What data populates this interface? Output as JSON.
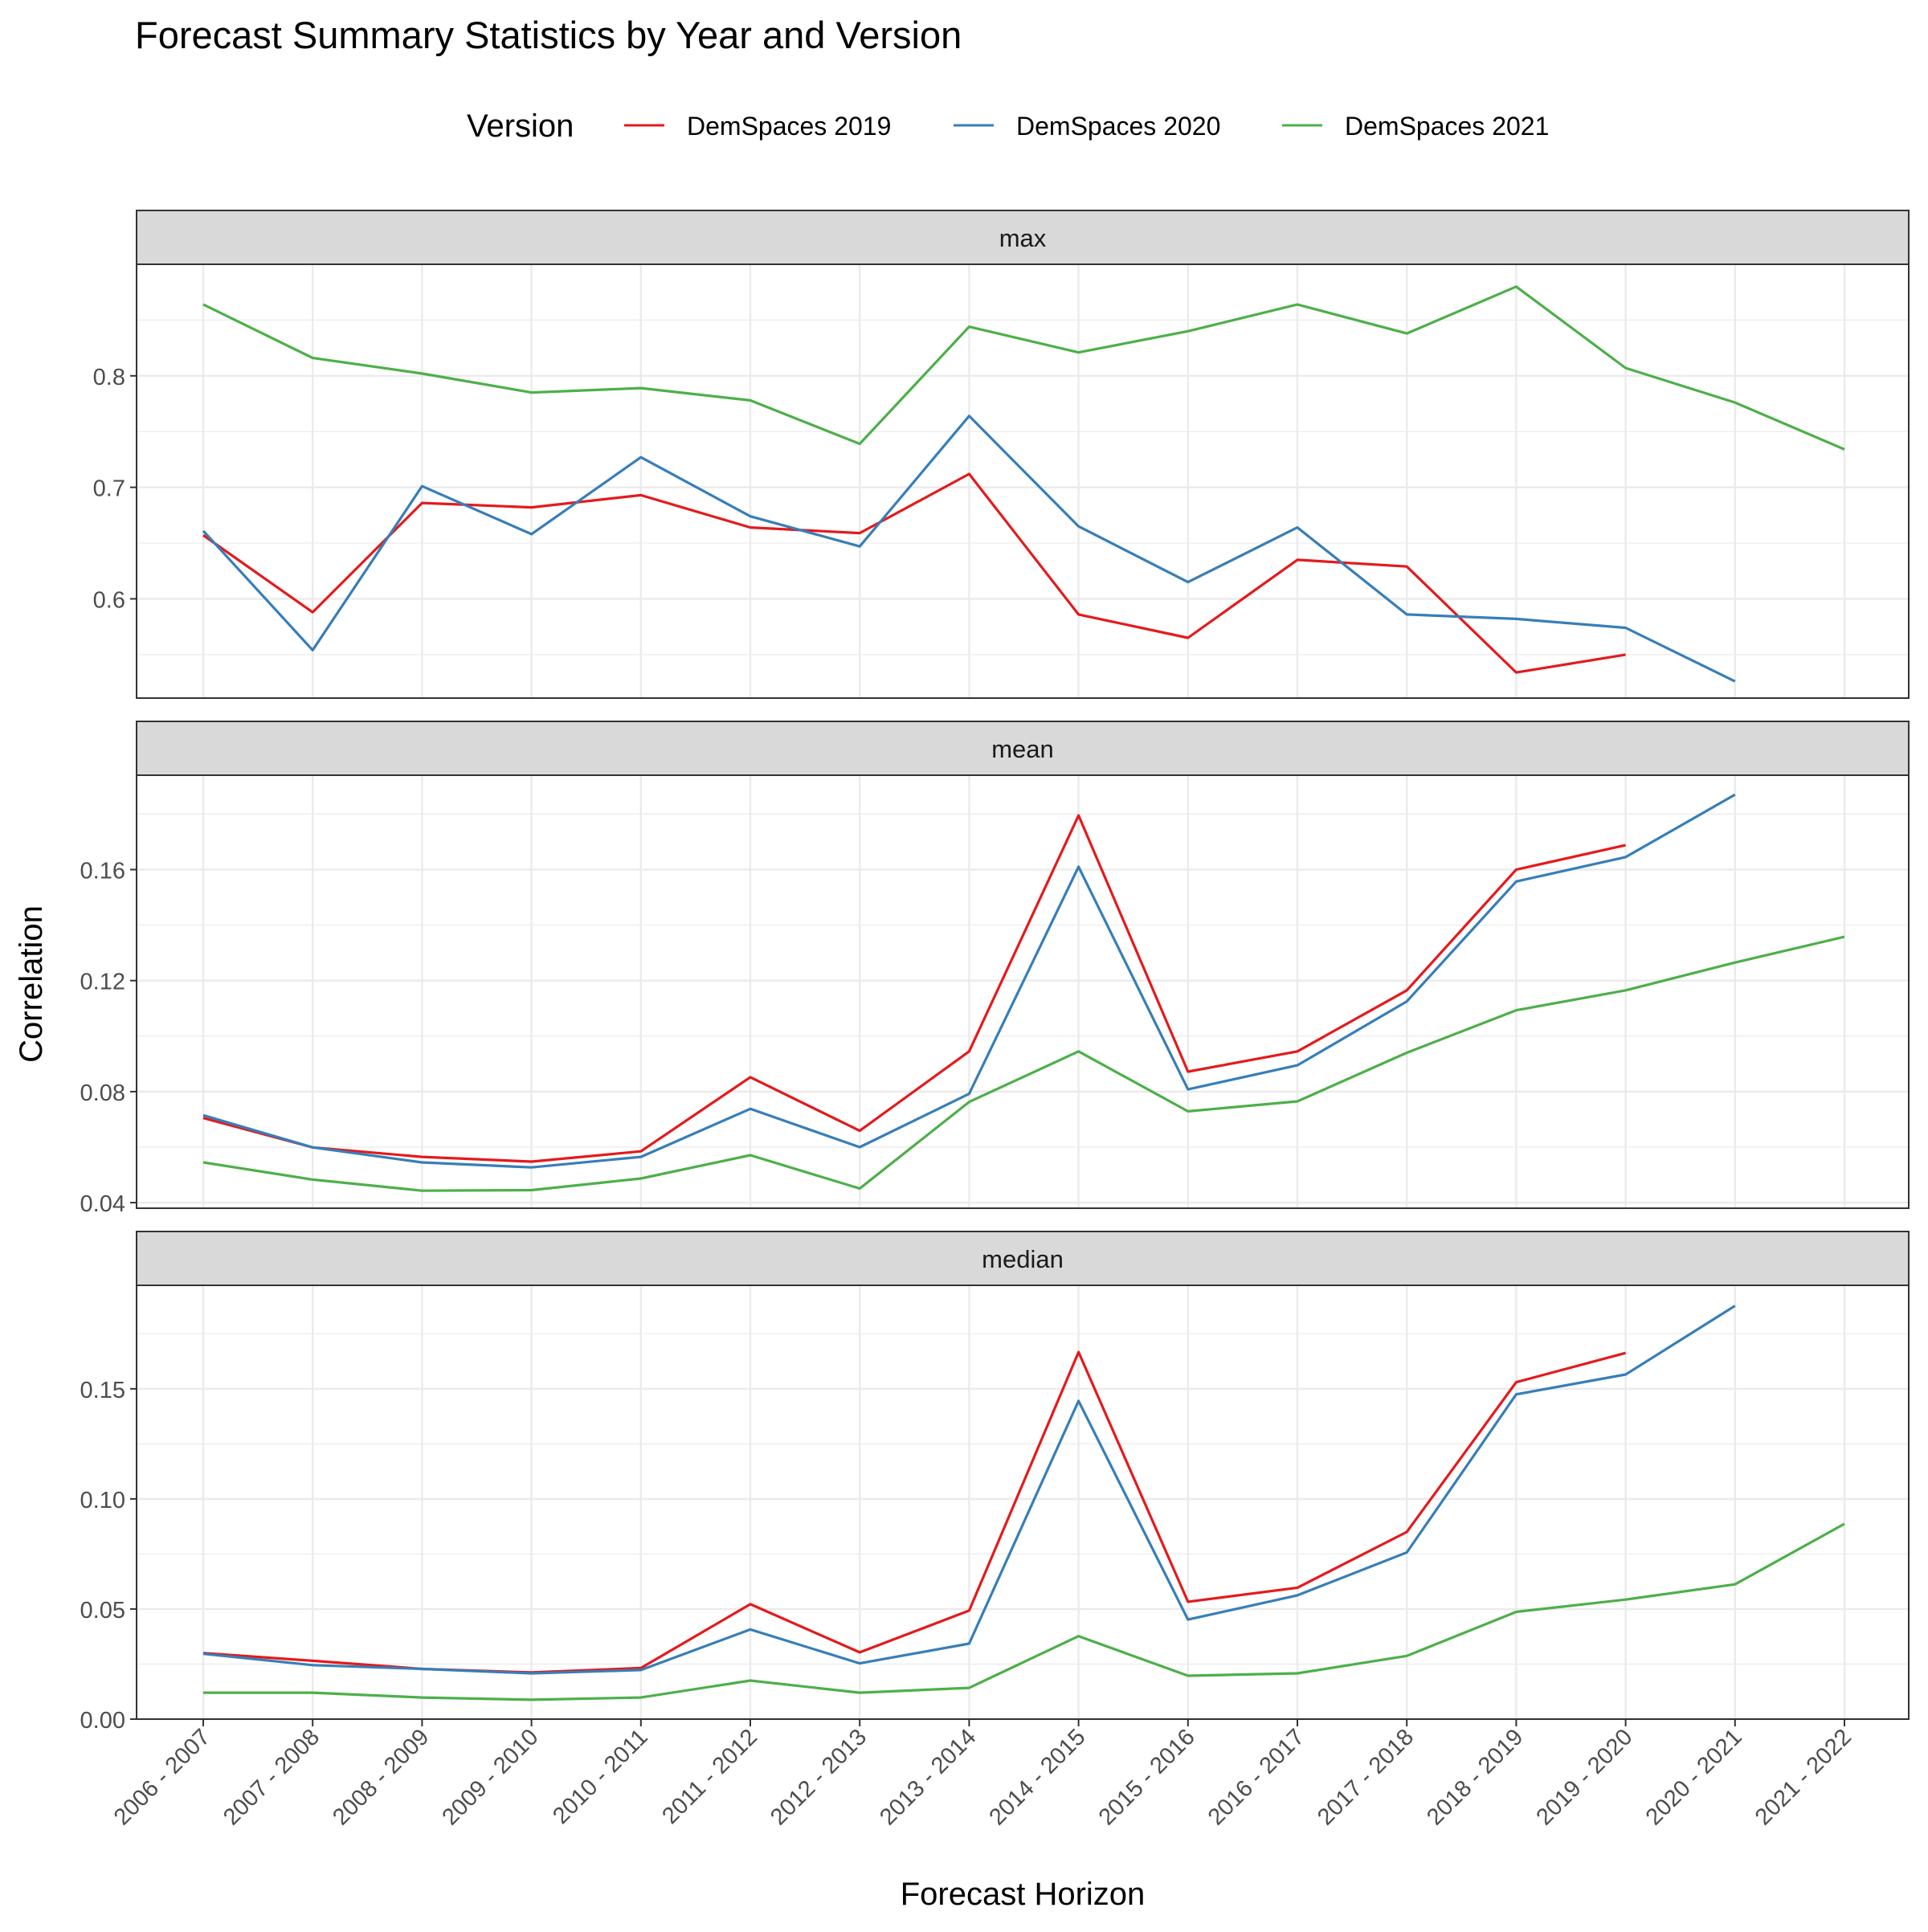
{
  "title": "Forecast Summary Statistics by Year and Version",
  "legend": {
    "title": "Version",
    "placement": "top"
  },
  "xlabel": "Forecast Horizon",
  "ylabel": "Correlation",
  "colors": {
    "DemSpaces 2019": "#e41a1c",
    "DemSpaces 2020": "#377eb8",
    "DemSpaces 2021": "#4daf4a",
    "strip_fill": "#d9d9d9",
    "grid": "#ebebeb",
    "border": "#333333"
  },
  "chart_data": {
    "type": "line",
    "facets": "vertical, shared x axis",
    "grid": true,
    "categories": [
      "2006 - 2007",
      "2007 - 2008",
      "2008 - 2009",
      "2009 - 2010",
      "2010 - 2011",
      "2011 - 2012",
      "2012 - 2013",
      "2013 - 2014",
      "2014 - 2015",
      "2015 - 2016",
      "2016 - 2017",
      "2017 - 2018",
      "2018 - 2019",
      "2019 - 2020",
      "2020 - 2021",
      "2021 - 2022"
    ],
    "series_names": [
      "DemSpaces 2019",
      "DemSpaces 2020",
      "DemSpaces 2021"
    ],
    "panels": [
      {
        "name": "max",
        "ylim": [
          0.511,
          0.9
        ],
        "yticks": [
          0.6,
          0.7,
          0.8
        ],
        "ytick_labels": [
          "0.6",
          "0.7",
          "0.8"
        ],
        "series": [
          {
            "name": "DemSpaces 2019",
            "values": [
              0.657,
              0.588,
              0.686,
              0.682,
              0.693,
              0.664,
              0.659,
              0.712,
              0.586,
              0.565,
              0.635,
              0.629,
              0.534,
              0.55,
              null,
              null
            ]
          },
          {
            "name": "DemSpaces 2020",
            "values": [
              0.661,
              0.554,
              0.701,
              0.658,
              0.727,
              0.674,
              0.647,
              0.764,
              0.665,
              0.615,
              0.664,
              0.586,
              0.582,
              0.574,
              0.526,
              null
            ]
          },
          {
            "name": "DemSpaces 2021",
            "values": [
              0.864,
              0.816,
              0.802,
              0.785,
              0.789,
              0.778,
              0.739,
              0.844,
              0.821,
              0.84,
              0.864,
              0.838,
              0.88,
              0.807,
              0.776,
              0.734
            ]
          }
        ]
      },
      {
        "name": "mean",
        "ylim": [
          0.038,
          0.194
        ],
        "yticks": [
          0.04,
          0.08,
          0.12,
          0.16
        ],
        "ytick_labels": [
          "0.04",
          "0.08",
          "0.12",
          "0.16"
        ],
        "series": [
          {
            "name": "DemSpaces 2019",
            "values": [
              0.0705,
              0.0599,
              0.0565,
              0.0548,
              0.0585,
              0.0852,
              0.0659,
              0.0945,
              0.1795,
              0.0872,
              0.0945,
              0.1165,
              0.16,
              0.1688,
              null,
              null
            ]
          },
          {
            "name": "DemSpaces 2020",
            "values": [
              0.0715,
              0.0599,
              0.0545,
              0.0527,
              0.0565,
              0.0738,
              0.06,
              0.0792,
              0.161,
              0.0808,
              0.0895,
              0.1125,
              0.1557,
              0.1645,
              0.187,
              null
            ]
          },
          {
            "name": "DemSpaces 2021",
            "values": [
              0.0545,
              0.0483,
              0.0443,
              0.0445,
              0.0487,
              0.0571,
              0.0451,
              0.0763,
              0.0945,
              0.0729,
              0.0765,
              0.094,
              0.1093,
              0.1165,
              0.1265,
              0.1358
            ]
          }
        ]
      },
      {
        "name": "median",
        "ylim": [
          0.0,
          0.197
        ],
        "yticks": [
          0.0,
          0.05,
          0.1,
          0.15
        ],
        "ytick_labels": [
          "0.00",
          "0.05",
          "0.10",
          "0.15"
        ],
        "series": [
          {
            "name": "DemSpaces 2019",
            "values": [
              0.03,
              0.0265,
              0.0228,
              0.0212,
              0.0232,
              0.0522,
              0.0303,
              0.0493,
              0.1667,
              0.0533,
              0.0597,
              0.085,
              0.153,
              0.1663,
              null,
              null
            ]
          },
          {
            "name": "DemSpaces 2020",
            "values": [
              0.0297,
              0.0245,
              0.0228,
              0.0208,
              0.0223,
              0.0407,
              0.0253,
              0.0343,
              0.1445,
              0.0452,
              0.0562,
              0.0757,
              0.1475,
              0.1565,
              0.1877,
              null
            ]
          },
          {
            "name": "DemSpaces 2021",
            "values": [
              0.012,
              0.012,
              0.0098,
              0.0088,
              0.0098,
              0.0175,
              0.012,
              0.0142,
              0.0377,
              0.0197,
              0.0208,
              0.0287,
              0.0487,
              0.0543,
              0.0612,
              0.0887
            ]
          }
        ]
      }
    ]
  }
}
